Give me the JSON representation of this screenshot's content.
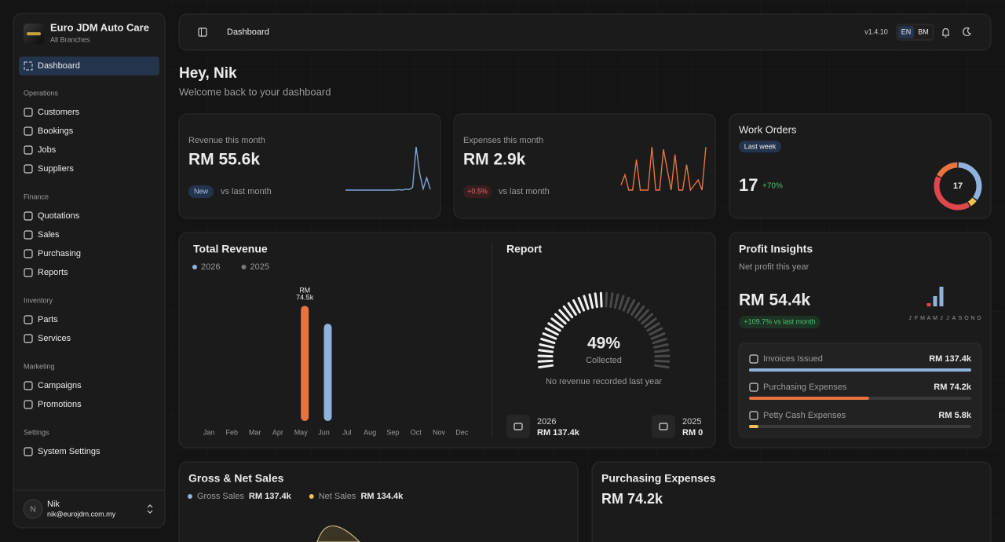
{
  "sidebar": {
    "brand": {
      "name": "Euro JDM Auto Care",
      "subtitle": "All Branches"
    },
    "nav": {
      "main": "Dashboard",
      "sections": [
        {
          "title": "Operations",
          "items": [
            "Customers",
            "Bookings",
            "Jobs",
            "Suppliers"
          ]
        },
        {
          "title": "Finance",
          "items": [
            "Quotations",
            "Sales",
            "Purchasing",
            "Reports"
          ]
        },
        {
          "title": "Inventory",
          "items": [
            "Parts",
            "Services"
          ]
        },
        {
          "title": "Marketing",
          "items": [
            "Campaigns",
            "Promotions"
          ]
        },
        {
          "title": "Settings",
          "items": [
            "System Settings"
          ]
        }
      ]
    },
    "user": {
      "initial": "N",
      "name": "Nik",
      "email": "nik@eurojdm.com.my"
    }
  },
  "topbar": {
    "page": "Dashboard",
    "version": "v1.4.10",
    "languages": [
      "EN",
      "BM"
    ]
  },
  "greeting": {
    "title": "Hey, Nik",
    "subtitle": "Welcome back to your dashboard"
  },
  "revenue_card": {
    "label": "Revenue this month",
    "value": "RM 55.6k",
    "badge": "New",
    "compare": "vs last month",
    "chart_data": {
      "type": "line",
      "color": "#7fa7d6",
      "values": [
        2,
        2,
        2,
        2,
        2,
        2,
        2,
        2,
        2,
        2,
        2,
        2,
        2,
        2,
        2,
        3,
        2,
        4,
        3,
        8,
        100,
        40,
        5,
        30,
        4
      ]
    }
  },
  "expenses_card": {
    "label": "Expenses this month",
    "value": "RM 2.9k",
    "badge": "+0.5%",
    "compare": "vs last month",
    "chart_data": {
      "type": "line",
      "color": "#e8733f",
      "values": [
        20,
        40,
        10,
        10,
        70,
        10,
        10,
        10,
        95,
        10,
        10,
        90,
        50,
        10,
        80,
        10,
        10,
        60,
        10,
        20,
        30,
        10,
        95
      ]
    }
  },
  "work_orders": {
    "title": "Work Orders",
    "badge": "Last week",
    "count": "17",
    "change": "+70%",
    "chart_data": {
      "type": "pie",
      "values": [
        6,
        1,
        7,
        3
      ],
      "colors": [
        "#8fb3dd",
        "#f0c24b",
        "#e0474c",
        "#e8733f"
      ]
    }
  },
  "total_revenue": {
    "chart_data": {
      "type": "bar",
      "title": "Total Revenue",
      "categories": [
        "Jan",
        "Feb",
        "Mar",
        "Apr",
        "May",
        "Jun",
        "Jul",
        "Aug",
        "Sep",
        "Oct",
        "Nov",
        "Dec"
      ],
      "series": [
        {
          "name": "2025",
          "color": "#7a7a7a",
          "values": [
            0,
            0,
            0,
            0,
            0,
            0,
            0,
            0,
            0,
            0,
            0,
            0
          ]
        },
        {
          "name": "2026",
          "color": "#8fb3dd",
          "colors": [
            "#8fb3dd",
            "#8fb3dd",
            "#8fb3dd",
            "#8fb3dd",
            "#e8733f",
            "#8fb3dd",
            "#8fb3dd",
            "#8fb3dd",
            "#8fb3dd",
            "#8fb3dd",
            "#8fb3dd",
            "#8fb3dd"
          ],
          "values": [
            0,
            0,
            0,
            0,
            74.5,
            62.9,
            null,
            null,
            null,
            null,
            null,
            null
          ],
          "value_labels": [
            null,
            null,
            null,
            null,
            "RM 74.5k",
            null,
            null,
            null,
            null,
            null,
            null,
            null
          ]
        }
      ]
    }
  },
  "report": {
    "title": "Report",
    "gauge": {
      "type": "gauge",
      "value": 49,
      "value_label": "49%",
      "caption": "Collected"
    },
    "note": "No revenue recorded last year",
    "stats": [
      {
        "year": "2026",
        "amount": "RM 137.4k"
      },
      {
        "year": "2025",
        "amount": "RM 0"
      }
    ]
  },
  "profit": {
    "title": "Profit Insights",
    "subtitle": "Net profit this year",
    "value": "RM 54.4k",
    "change": "+109.7% vs last month",
    "chart_data": {
      "type": "bar",
      "categories": [
        "J",
        "F",
        "M",
        "A",
        "M",
        "J",
        "J",
        "A",
        "S",
        "O",
        "N",
        "D"
      ],
      "values": [
        0,
        0,
        0,
        4,
        13,
        25,
        0,
        0,
        0,
        0,
        0,
        0
      ],
      "colors": [
        "#8fb3dd",
        "#8fb3dd",
        "#8fb3dd",
        "#e0474c",
        "#8fb3dd",
        "#8fb3dd",
        "#8fb3dd",
        "#8fb3dd",
        "#8fb3dd",
        "#8fb3dd",
        "#8fb3dd",
        "#8fb3dd"
      ]
    },
    "breakdown": [
      {
        "label": "Invoices Issued",
        "value": 137.4,
        "value_label": "RM 137.4k",
        "color": "#8fb3dd"
      },
      {
        "label": "Purchasing Expenses",
        "value": 74.2,
        "value_label": "RM 74.2k",
        "color": "#e8733f"
      },
      {
        "label": "Petty Cash Expenses",
        "value": 5.8,
        "value_label": "RM 5.8k",
        "color": "#f0c24b"
      }
    ]
  },
  "gross_net": {
    "title": "Gross & Net Sales",
    "legend": [
      {
        "name": "Gross Sales",
        "amount": "RM 137.4k",
        "color": "#8fb3dd"
      },
      {
        "name": "Net Sales",
        "amount": "RM 134.4k",
        "color": "#f0c24b"
      }
    ]
  },
  "purchasing": {
    "title": "Purchasing Expenses",
    "value": "RM 74.2k"
  }
}
